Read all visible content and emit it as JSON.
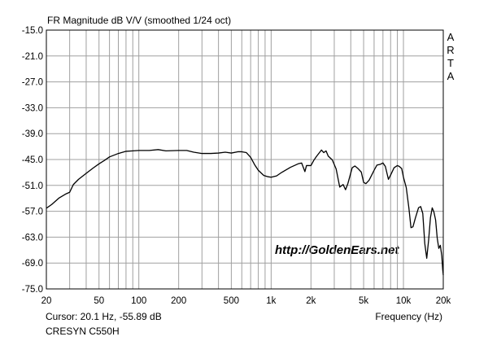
{
  "chart_data": {
    "type": "line",
    "title": "FR Magnitude dB V/V (smoothed 1/24 oct)",
    "xlabel": "Frequency (Hz)",
    "ylabel": "",
    "x_scale": "log",
    "xlim": [
      20,
      20000
    ],
    "ylim": [
      -75.0,
      -15.0
    ],
    "grid": true,
    "x_ticks": [
      20,
      50,
      100,
      200,
      500,
      1000,
      2000,
      5000,
      10000,
      20000
    ],
    "x_tick_labels": [
      "20",
      "50",
      "100",
      "200",
      "500",
      "1k",
      "2k",
      "5k",
      "10k",
      "20k"
    ],
    "y_ticks": [
      -15.0,
      -21.0,
      -27.0,
      -33.0,
      -39.0,
      -45.0,
      -51.0,
      -57.0,
      -63.0,
      -69.0,
      -75.0
    ],
    "y_tick_labels": [
      "-15.0",
      "-21.0",
      "-27.0",
      "-33.0",
      "-39.0",
      "-45.0",
      "-51.0",
      "-57.0",
      "-63.0",
      "-69.0",
      "-75.0"
    ],
    "series": [
      {
        "name": "",
        "color": "#000000",
        "points": [
          [
            20,
            -56.3
          ],
          [
            22,
            -55.4
          ],
          [
            25,
            -53.9
          ],
          [
            28,
            -53.0
          ],
          [
            30,
            -52.6
          ],
          [
            32,
            -50.8
          ],
          [
            35,
            -49.6
          ],
          [
            40,
            -48.2
          ],
          [
            45,
            -47.0
          ],
          [
            50,
            -46.0
          ],
          [
            55,
            -45.2
          ],
          [
            60,
            -44.4
          ],
          [
            70,
            -43.6
          ],
          [
            80,
            -43.1
          ],
          [
            90,
            -43.0
          ],
          [
            100,
            -42.9
          ],
          [
            120,
            -42.9
          ],
          [
            140,
            -42.7
          ],
          [
            160,
            -43.0
          ],
          [
            200,
            -42.9
          ],
          [
            230,
            -42.9
          ],
          [
            260,
            -43.3
          ],
          [
            300,
            -43.6
          ],
          [
            350,
            -43.6
          ],
          [
            400,
            -43.5
          ],
          [
            450,
            -43.3
          ],
          [
            500,
            -43.5
          ],
          [
            560,
            -43.2
          ],
          [
            600,
            -43.2
          ],
          [
            650,
            -43.4
          ],
          [
            700,
            -44.5
          ],
          [
            750,
            -46.2
          ],
          [
            800,
            -47.5
          ],
          [
            880,
            -48.7
          ],
          [
            950,
            -49.0
          ],
          [
            1000,
            -49.1
          ],
          [
            1100,
            -48.8
          ],
          [
            1200,
            -48.0
          ],
          [
            1400,
            -46.8
          ],
          [
            1600,
            -46.0
          ],
          [
            1700,
            -45.8
          ],
          [
            1800,
            -47.8
          ],
          [
            1850,
            -46.4
          ],
          [
            1950,
            -46.4
          ],
          [
            2000,
            -46.4
          ],
          [
            2100,
            -45.2
          ],
          [
            2200,
            -44.3
          ],
          [
            2400,
            -42.8
          ],
          [
            2500,
            -43.4
          ],
          [
            2600,
            -43.0
          ],
          [
            2700,
            -44.2
          ],
          [
            2900,
            -45.1
          ],
          [
            3100,
            -47.2
          ],
          [
            3300,
            -51.4
          ],
          [
            3500,
            -50.8
          ],
          [
            3650,
            -52.0
          ],
          [
            3800,
            -50.6
          ],
          [
            4100,
            -46.9
          ],
          [
            4300,
            -46.5
          ],
          [
            4500,
            -47.0
          ],
          [
            4800,
            -47.9
          ],
          [
            5000,
            -50.3
          ],
          [
            5200,
            -50.6
          ],
          [
            5500,
            -49.8
          ],
          [
            6000,
            -47.5
          ],
          [
            6300,
            -46.3
          ],
          [
            6700,
            -46.1
          ],
          [
            7000,
            -45.8
          ],
          [
            7300,
            -46.6
          ],
          [
            7700,
            -49.6
          ],
          [
            8000,
            -48.6
          ],
          [
            8500,
            -46.9
          ],
          [
            9000,
            -46.4
          ],
          [
            9300,
            -46.6
          ],
          [
            9700,
            -47.1
          ],
          [
            10000,
            -49.1
          ],
          [
            10500,
            -51.5
          ],
          [
            11000,
            -56.3
          ],
          [
            11400,
            -60.8
          ],
          [
            11800,
            -60.6
          ],
          [
            12300,
            -58.6
          ],
          [
            13000,
            -56.2
          ],
          [
            13500,
            -55.9
          ],
          [
            14000,
            -57.5
          ],
          [
            14500,
            -64.5
          ],
          [
            15000,
            -67.9
          ],
          [
            15500,
            -63.7
          ],
          [
            16000,
            -58.5
          ],
          [
            16500,
            -56.2
          ],
          [
            17000,
            -57.2
          ],
          [
            17500,
            -59.0
          ],
          [
            18000,
            -63.2
          ],
          [
            18500,
            -65.6
          ],
          [
            19000,
            -64.9
          ],
          [
            19500,
            -67.4
          ],
          [
            19800,
            -70.5
          ],
          [
            20000,
            -71.8
          ]
        ]
      }
    ]
  },
  "labels": {
    "title": "FR Magnitude dB V/V (smoothed 1/24 oct)",
    "cursor": "Cursor: 20.1 Hz, -55.89 dB",
    "device": "CRESYN C550H",
    "x_unit": "Frequency (Hz)",
    "brand": "ARTA",
    "watermark": "http://GoldenEars.net"
  },
  "colors": {
    "background": "#ffffff",
    "grid": "#a0a0a0",
    "axes": "#000000",
    "curve": "#000000"
  }
}
